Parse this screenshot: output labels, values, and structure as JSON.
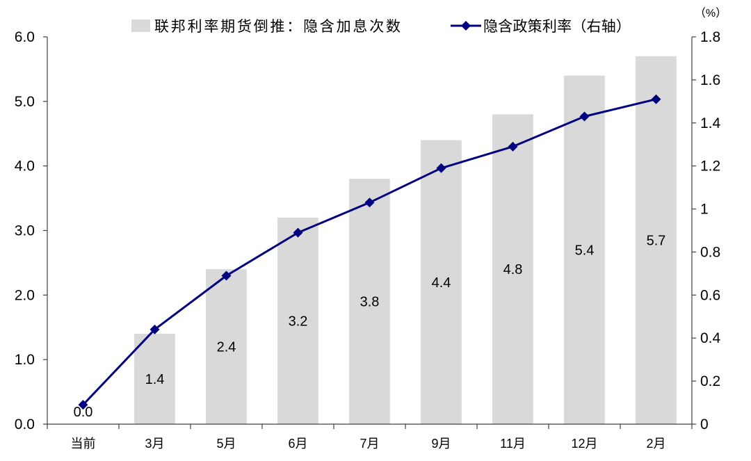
{
  "chart_data": {
    "type": "bar",
    "categories": [
      "当前",
      "3月",
      "5月",
      "6月",
      "7月",
      "9月",
      "11月",
      "12月",
      "2月"
    ],
    "series": [
      {
        "name": "联邦利率期货倒推：隐含加息次数",
        "chart_type": "bar",
        "axis": "left",
        "color": "#d9d9d9",
        "data_labels": true,
        "values": [
          0.0,
          1.4,
          2.4,
          3.2,
          3.8,
          4.4,
          4.8,
          5.4,
          5.7
        ]
      },
      {
        "name": "隐含政策利率（右轴）",
        "chart_type": "line",
        "axis": "right",
        "color": "#000080",
        "marker": "diamond",
        "values": [
          0.09,
          0.44,
          0.69,
          0.89,
          1.03,
          1.19,
          1.29,
          1.43,
          1.51
        ]
      }
    ],
    "ylim": [
      0,
      6
    ],
    "yticks": [
      "0.0",
      "1.0",
      "2.0",
      "3.0",
      "4.0",
      "5.0",
      "6.0"
    ],
    "y2lim": [
      0,
      1.8
    ],
    "y2ticks": [
      "0",
      "0.2",
      "0.4",
      "0.6",
      "0.8",
      "1",
      "1.2",
      "1.4",
      "1.6",
      "1.8"
    ],
    "y2unit": "（%）",
    "grid": false,
    "legend": "top"
  }
}
